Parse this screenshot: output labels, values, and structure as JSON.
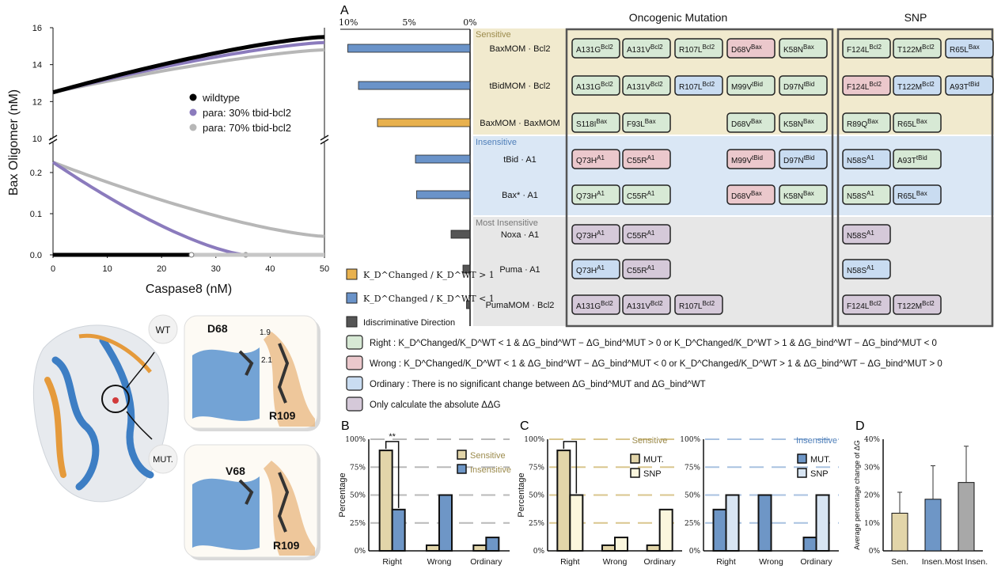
{
  "panel_a": {
    "letter": "A",
    "columns": [
      "Oncogenic Mutation",
      "SNP"
    ],
    "bar_ticks": [
      "10%",
      "5%",
      "0%"
    ],
    "groups": [
      {
        "name": "Sensitive",
        "color": "#eee6c6"
      },
      {
        "name": "Insensitive",
        "color": "#d3e3f3"
      },
      {
        "name": "Most Insensitive",
        "color": "#e3e3e3"
      }
    ],
    "rows": [
      {
        "label": "BaxMOM · Bcl2",
        "bar": 10.3,
        "bar_color": "#6a93c9",
        "onco": [
          [
            "A131G",
            "Bcl2",
            "R"
          ],
          [
            "A131V",
            "Bcl2",
            "R"
          ],
          [
            "R107L",
            "Bcl2",
            "R"
          ],
          [
            "D68V",
            "Bax",
            "W"
          ],
          [
            "K58N",
            "Bax",
            "R"
          ]
        ],
        "snp": [
          [
            "F124L",
            "Bcl2",
            "R"
          ],
          [
            "T122M",
            "Bcl2",
            "R"
          ],
          [
            "R65L",
            "Bax",
            "O"
          ]
        ]
      },
      {
        "label": "tBidMOM · Bcl2",
        "bar": 9.4,
        "bar_color": "#6a93c9",
        "onco": [
          [
            "A131G",
            "Bcl2",
            "R"
          ],
          [
            "A131V",
            "Bcl2",
            "R"
          ],
          [
            "R107L",
            "Bcl2",
            "O"
          ],
          [
            "M99V",
            "tBid",
            "R"
          ],
          [
            "D97N",
            "tBid",
            "R"
          ]
        ],
        "snp": [
          [
            "F124L",
            "Bcl2",
            "W"
          ],
          [
            "T122M",
            "Bcl2",
            "O"
          ],
          [
            "A93T",
            "tBid",
            "O"
          ]
        ]
      },
      {
        "label": "BaxMOM · BaxMOM",
        "bar": 7.8,
        "bar_color": "#e8b14e",
        "onco": [
          [
            "S118I",
            "Bax",
            "R"
          ],
          [
            "F93L",
            "Bax",
            "R"
          ],
          null,
          [
            "D68V",
            "Bax",
            "R"
          ],
          [
            "K58N",
            "Bax",
            "R"
          ]
        ],
        "snp": [
          [
            "R89Q",
            "Bax",
            "R"
          ],
          [
            "R65L",
            "Bax",
            "R"
          ]
        ]
      },
      {
        "label": "tBid · A1",
        "bar": 4.6,
        "bar_color": "#6a93c9",
        "onco": [
          [
            "Q73H",
            "A1",
            "W"
          ],
          [
            "C55R",
            "A1",
            "W"
          ],
          null,
          [
            "M99V",
            "tBid",
            "W"
          ],
          [
            "D97N",
            "tBid",
            "O"
          ]
        ],
        "snp": [
          [
            "N58S",
            "A1",
            "O"
          ],
          [
            "A93T",
            "tBid",
            "R"
          ]
        ]
      },
      {
        "label": "Bax* · A1",
        "bar": 4.5,
        "bar_color": "#6a93c9",
        "onco": [
          [
            "Q73H",
            "A1",
            "R"
          ],
          [
            "C55R",
            "A1",
            "R"
          ],
          null,
          [
            "D68V",
            "Bax",
            "W"
          ],
          [
            "K58N",
            "Bax",
            "R"
          ]
        ],
        "snp": [
          [
            "N58S",
            "A1",
            "R"
          ],
          [
            "R65L",
            "Bax",
            "O"
          ]
        ]
      },
      {
        "label": "Noxa · A1",
        "bar": 1.6,
        "bar_color": "#555555",
        "onco": [
          [
            "Q73H",
            "A1",
            "P"
          ],
          [
            "C55R",
            "A1",
            "P"
          ]
        ],
        "snp": [
          [
            "N58S",
            "A1",
            "P"
          ]
        ]
      },
      {
        "label": "Puma · A1",
        "bar": 0.6,
        "bar_color": "#555555",
        "onco": [
          [
            "Q73H",
            "A1",
            "O"
          ],
          [
            "C55R",
            "A1",
            "P"
          ]
        ],
        "snp": [
          [
            "N58S",
            "A1",
            "O"
          ]
        ]
      },
      {
        "label": "PumaMOM · Bcl2",
        "bar": 0.3,
        "bar_color": "#555555",
        "onco": [
          [
            "A131G",
            "Bcl2",
            "P"
          ],
          [
            "A131V",
            "Bcl2",
            "P"
          ],
          [
            "R107L",
            "Bcl2",
            "P"
          ]
        ],
        "snp": [
          [
            "F124L",
            "Bcl2",
            "P"
          ],
          [
            "T122M",
            "Bcl2",
            "P"
          ]
        ]
      }
    ],
    "bar_legend": [
      {
        "color": "#e8b14e",
        "text": "K_D^Changed / K_D^WT > 1"
      },
      {
        "color": "#6a93c9",
        "text": "K_D^Changed / K_D^WT < 1"
      },
      {
        "color": "#555555",
        "text": "Idiscriminative Direction"
      }
    ],
    "category_legend": [
      {
        "color": "#d7e9d5",
        "name": "Right :",
        "text": "K_D^Changed/K_D^WT < 1 & ΔG_bind^WT − ΔG_bind^MUT > 0    or    K_D^Changed/K_D^WT > 1 & ΔG_bind^WT − ΔG_bind^MUT < 0"
      },
      {
        "color": "#ebc8cc",
        "name": "Wrong :",
        "text": "K_D^Changed/K_D^WT < 1 & ΔG_bind^WT − ΔG_bind^MUT < 0    or    K_D^Changed/K_D^WT > 1 & ΔG_bind^WT − ΔG_bind^MUT > 0"
      },
      {
        "color": "#c9dcf1",
        "name": "Ordinary :",
        "text": "There is no significant change between ΔG_bind^MUT and ΔG_bind^WT"
      },
      {
        "color": "#d5c9d9",
        "name": "",
        "text": "Only calculate the absolute ΔΔG"
      }
    ],
    "cell_colors": {
      "R": "#d7e9d5",
      "W": "#ebc8cc",
      "O": "#c9dcf1",
      "P": "#d5c9d9"
    }
  },
  "structure": {
    "wt_label": "WT",
    "mut_label": "MUT.",
    "wt_residue_1": "D68",
    "wt_residue_2": "R109",
    "wt_dist_1": "1.9",
    "wt_dist_2": "2.1",
    "mut_residue_1": "V68",
    "mut_residue_2": "R109"
  },
  "chart_data": [
    {
      "id": "top-left",
      "type": "line",
      "xlabel": "Caspase8 (nM)",
      "ylabel": "Bax Oligomer (nM)",
      "xlim": [
        0,
        50
      ],
      "xticks": [
        0,
        10,
        20,
        30,
        40,
        50
      ],
      "ylim_upper": [
        10,
        16
      ],
      "yticks_upper": [
        10,
        12,
        14,
        16
      ],
      "ylim_lower": [
        0,
        0.25
      ],
      "yticks_lower": [
        "0.0",
        "0.1",
        "0.2"
      ],
      "legend": [
        "wildtype",
        "para: 30% tbid-bcl2",
        "para: 70% tbid-bcl2"
      ],
      "series": [
        {
          "name": "wildtype",
          "color": "#000000",
          "upper_start": 12.5,
          "upper_end": 15.5,
          "lower_start": 0.0,
          "lower_end": 0.0,
          "lower_cut": 25.5
        },
        {
          "name": "para: 30% tbid-bcl2",
          "color": "#8b7bbd",
          "upper_start": 12.5,
          "upper_end": 15.2,
          "lower_start": 0.225,
          "lower_end": 0.0,
          "lower_cut": 35.5
        },
        {
          "name": "para: 70% tbid-bcl2",
          "color": "#b7b7b7",
          "upper_start": 12.5,
          "upper_end": 14.8,
          "lower_start": 0.225,
          "lower_end": 0.045,
          "lower_cut": 50
        }
      ]
    },
    {
      "id": "B",
      "type": "bar",
      "letter": "B",
      "categories": [
        "Right",
        "Wrong",
        "Ordinary"
      ],
      "ylabel": "Percentage",
      "ylim": [
        0,
        100
      ],
      "yticks": [
        "0%",
        "25%",
        "50%",
        "75%",
        "100%"
      ],
      "series": [
        {
          "name": "Sensitive",
          "color": "#e2d5a9",
          "values": [
            90,
            5,
            5
          ]
        },
        {
          "name": "Insensitive",
          "color": "#6e96c6",
          "values": [
            37,
            50,
            12
          ]
        }
      ],
      "annotation": "**"
    },
    {
      "id": "C-sensitive",
      "type": "bar",
      "letter": "C",
      "title": "Sensitive",
      "categories": [
        "Right",
        "Wrong",
        "Ordinary"
      ],
      "ylabel": "Percentage",
      "ylim": [
        0,
        100
      ],
      "yticks": [
        "0%",
        "25%",
        "50%",
        "75%",
        "100%"
      ],
      "series": [
        {
          "name": "MUT.",
          "color": "#e2d5a9",
          "values": [
            90,
            5,
            5
          ]
        },
        {
          "name": "SNP",
          "color": "#fbf6dd",
          "values": [
            50,
            12,
            37
          ]
        }
      ]
    },
    {
      "id": "C-insensitive",
      "type": "bar",
      "title": "Insensitive",
      "categories": [
        "Right",
        "Wrong",
        "Ordinary"
      ],
      "ylim": [
        0,
        100
      ],
      "yticks": [
        "0%",
        "25%",
        "50%",
        "75%",
        "100%"
      ],
      "series": [
        {
          "name": "MUT.",
          "color": "#6e96c6",
          "values": [
            37,
            50,
            12
          ]
        },
        {
          "name": "SNP",
          "color": "#d8e5f3",
          "values": [
            50,
            0,
            50
          ]
        }
      ]
    },
    {
      "id": "D",
      "type": "bar",
      "letter": "D",
      "categories": [
        "Sen.",
        "Insen.",
        "Most Insen."
      ],
      "ylabel": "Average percentage change of ΔG",
      "ylim": [
        0,
        40
      ],
      "yticks": [
        "0%",
        "10%",
        "20%",
        "30%",
        "40%"
      ],
      "values": [
        13.5,
        18.5,
        24.5
      ],
      "errors": [
        7.5,
        12,
        13
      ],
      "colors": [
        "#e2d5a9",
        "#6e96c6",
        "#a8a8a8"
      ]
    }
  ]
}
